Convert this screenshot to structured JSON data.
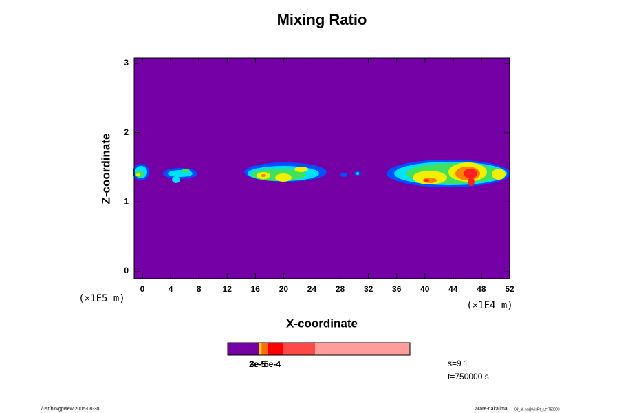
{
  "chart_data": {
    "type": "contour",
    "title": "Mixing Ratio",
    "x_label": "X-coordinate",
    "y_label": "Z-coordinate",
    "x_unit": "(×1E4 m)",
    "y_unit": "(×1E5 m)",
    "xlim": [
      -1.17,
      52
    ],
    "ylim": [
      -0.11,
      3.08
    ],
    "xticks": [
      0,
      4,
      8,
      12,
      16,
      20,
      24,
      28,
      32,
      36,
      40,
      44,
      48,
      52
    ],
    "yticks": [
      0,
      1,
      2,
      3
    ],
    "background_color": "#7400a6",
    "colorbar": {
      "colors": [
        "#7400a6",
        "#ffd000",
        "#ff9000",
        "#ff6a10",
        "#ff0000",
        "#ff4848",
        "#ff9c9c"
      ],
      "labels": [
        "2e-5",
        "3e-5",
        "5e-4"
      ]
    },
    "annotations": [
      "s=9 1",
      "t=750000 s"
    ]
  },
  "footer": {
    "left": "/usr/bin/gpview 2005-08-30",
    "right": "arare-nakajima",
    "right_small": "03_all.nc@MixRt_s,t=750000"
  }
}
